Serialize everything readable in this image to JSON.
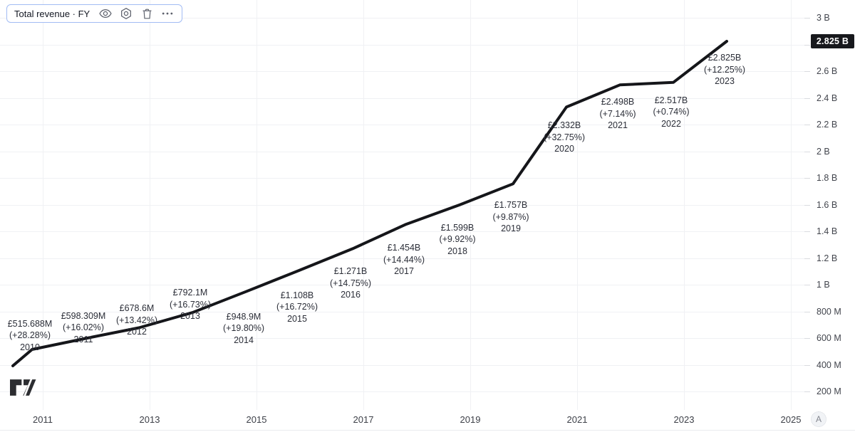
{
  "legend": {
    "title": "Total revenue · FY",
    "actions": [
      {
        "icon": "eye-icon",
        "meaning": "toggle visibility"
      },
      {
        "icon": "gear-icon",
        "meaning": "settings"
      },
      {
        "icon": "trash-icon",
        "meaning": "delete"
      },
      {
        "icon": "ellipsis-icon",
        "meaning": "more options"
      }
    ]
  },
  "branding": {
    "logo_icon": "tradingview-logo"
  },
  "y_axis": {
    "badge": "2.825 B",
    "ticks": [
      {
        "label": "3 B",
        "value_m": 3000
      },
      {
        "label": "2.6 B",
        "value_m": 2600
      },
      {
        "label": "2.4 B",
        "value_m": 2400
      },
      {
        "label": "2.2 B",
        "value_m": 2200
      },
      {
        "label": "2 B",
        "value_m": 2000
      },
      {
        "label": "1.8 B",
        "value_m": 1800
      },
      {
        "label": "1.6 B",
        "value_m": 1600
      },
      {
        "label": "1.4 B",
        "value_m": 1400
      },
      {
        "label": "1.2 B",
        "value_m": 1200
      },
      {
        "label": "1 B",
        "value_m": 1000
      },
      {
        "label": "800 M",
        "value_m": 800
      },
      {
        "label": "600 M",
        "value_m": 600
      },
      {
        "label": "400 M",
        "value_m": 400
      },
      {
        "label": "200 M",
        "value_m": 200
      }
    ]
  },
  "x_axis": {
    "ticks": [
      "2011",
      "2013",
      "2015",
      "2017",
      "2019",
      "2021",
      "2023",
      "2025"
    ],
    "auto_label": "A"
  },
  "chart_data": {
    "type": "line",
    "title": "Total revenue · FY",
    "currency": "GBP",
    "unit": "millions",
    "ylim_m": [
      200,
      3000
    ],
    "grid": true,
    "legend_position": "top-left",
    "line_color": "#15161a",
    "grid_color": "#f0f1f4",
    "series": [
      {
        "name": "Total revenue",
        "points": [
          {
            "year": "2010",
            "value_m": 515.688,
            "value_label": "£515.688M",
            "change_label": "(+28.28%)",
            "side": "above",
            "label_dy": -44
          },
          {
            "year": "2011",
            "value_m": 598.309,
            "value_label": "£598.309M",
            "change_label": "(+16.02%)",
            "side": "above",
            "label_dy": -40
          },
          {
            "year": "2012",
            "value_m": 678.6,
            "value_label": "£678.6M",
            "change_label": "(+13.42%)",
            "side": "above",
            "label_dy": -35
          },
          {
            "year": "2013",
            "value_m": 792.1,
            "value_label": "£792.1M",
            "change_label": "(+16.73%)",
            "side": "above",
            "label_dy": -36
          },
          {
            "year": "2014",
            "value_m": 948.9,
            "value_label": "£948.9M",
            "change_label": "(+19.80%)",
            "side": "below",
            "label_dy": 27
          },
          {
            "year": "2015",
            "value_m": 1108,
            "value_label": "£1.108B",
            "change_label": "(+16.72%)",
            "side": "below",
            "label_dy": 27
          },
          {
            "year": "2016",
            "value_m": 1271,
            "value_label": "£1.271B",
            "change_label": "(+14.75%)",
            "side": "below",
            "label_dy": 24
          },
          {
            "year": "2017",
            "value_m": 1454,
            "value_label": "£1.454B",
            "change_label": "(+14.44%)",
            "side": "below",
            "label_dy": 25
          },
          {
            "year": "2018",
            "value_m": 1599,
            "value_label": "£1.599B",
            "change_label": "(+9.92%)",
            "side": "below",
            "label_dy": 24
          },
          {
            "year": "2019",
            "value_m": 1757,
            "value_label": "£1.757B",
            "change_label": "(+9.87%)",
            "side": "below",
            "label_dy": 22
          },
          {
            "year": "2020",
            "value_m": 2332,
            "value_label": "£2.332B",
            "change_label": "(+32.75%)",
            "side": "below",
            "label_dy": 18
          },
          {
            "year": "2021",
            "value_m": 2498,
            "value_label": "£2.498B",
            "change_label": "(+7.14%)",
            "side": "below",
            "label_dy": 16
          },
          {
            "year": "2022",
            "value_m": 2517,
            "value_label": "£2.517B",
            "change_label": "(+0.74%)",
            "side": "below",
            "label_dy": 17
          },
          {
            "year": "2023",
            "value_m": 2825,
            "value_label": "£2.825B",
            "change_label": "(+12.25%)",
            "side": "below",
            "label_dy": 15
          }
        ]
      }
    ]
  }
}
